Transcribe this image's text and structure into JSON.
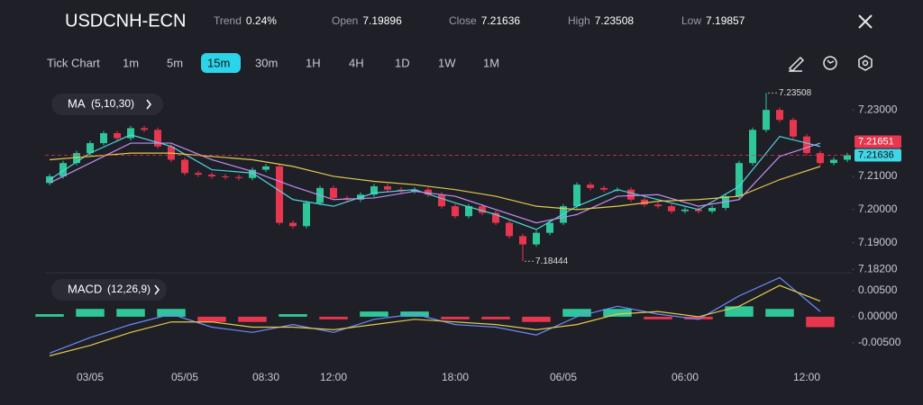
{
  "header": {
    "symbol": "USDCNH-ECN",
    "stats": [
      {
        "label": "Trend",
        "value": "0.24%"
      },
      {
        "label": "Open",
        "value": "7.19896"
      },
      {
        "label": "Close",
        "value": "7.21636"
      },
      {
        "label": "High",
        "value": "7.23508"
      },
      {
        "label": "Low",
        "value": "7.19857"
      }
    ]
  },
  "toolbar": {
    "items": [
      "Tick Chart",
      "1m",
      "5m",
      "15m",
      "30m",
      "1H",
      "4H",
      "1D",
      "1W",
      "1M"
    ],
    "selected": "15m"
  },
  "chart_data": {
    "type": "candlestick",
    "indicator": {
      "name": "MA",
      "params": "(5,10,30)"
    },
    "up_color": "#2fc79a",
    "down_color": "#e8364f",
    "candles": [
      [
        7.208,
        7.2107,
        7.2073,
        7.21
      ],
      [
        7.21,
        7.2147,
        7.2093,
        7.214
      ],
      [
        7.214,
        7.2177,
        7.2133,
        7.217
      ],
      [
        7.217,
        7.2207,
        7.2163,
        7.22
      ],
      [
        7.22,
        7.2237,
        7.2193,
        7.223
      ],
      [
        7.223,
        7.2237,
        7.2208,
        7.2215
      ],
      [
        7.2215,
        7.2252,
        7.2208,
        7.2245
      ],
      [
        7.2245,
        7.2252,
        7.2233,
        7.224
      ],
      [
        7.224,
        7.2247,
        7.2183,
        7.219
      ],
      [
        7.219,
        7.2197,
        7.2143,
        7.215
      ],
      [
        7.215,
        7.2157,
        7.2103,
        7.211
      ],
      [
        7.211,
        7.2117,
        7.2098,
        7.2105
      ],
      [
        7.2105,
        7.2112,
        7.2093,
        7.21
      ],
      [
        7.21,
        7.2107,
        7.2091,
        7.2098
      ],
      [
        7.2098,
        7.2105,
        7.2088,
        7.2095
      ],
      [
        7.2095,
        7.2127,
        7.2088,
        7.212
      ],
      [
        7.212,
        7.2137,
        7.2113,
        7.213
      ],
      [
        7.213,
        7.2137,
        7.1953,
        7.196
      ],
      [
        7.196,
        7.1967,
        7.1943,
        7.195
      ],
      [
        7.195,
        7.2027,
        7.1943,
        7.202
      ],
      [
        7.202,
        7.2072,
        7.2013,
        7.2065
      ],
      [
        7.2065,
        7.2072,
        7.2028,
        7.2035
      ],
      [
        7.2035,
        7.2042,
        7.2023,
        7.203
      ],
      [
        7.203,
        7.2052,
        7.2023,
        7.2045
      ],
      [
        7.2045,
        7.2077,
        7.2038,
        7.207
      ],
      [
        7.207,
        7.2077,
        7.2053,
        7.206
      ],
      [
        7.206,
        7.2067,
        7.2048,
        7.2055
      ],
      [
        7.2055,
        7.2067,
        7.2048,
        7.206
      ],
      [
        7.206,
        7.2067,
        7.2038,
        7.2045
      ],
      [
        7.2045,
        7.2052,
        7.2003,
        7.201
      ],
      [
        7.201,
        7.2017,
        7.1973,
        7.198
      ],
      [
        7.198,
        7.2017,
        7.1973,
        7.201
      ],
      [
        7.201,
        7.2017,
        7.1983,
        7.199
      ],
      [
        7.199,
        7.1997,
        7.1953,
        7.196
      ],
      [
        7.196,
        7.1967,
        7.1913,
        7.192
      ],
      [
        7.192,
        7.1927,
        7.18444,
        7.1895
      ],
      [
        7.1895,
        7.1937,
        7.1888,
        7.193
      ],
      [
        7.193,
        7.1967,
        7.1923,
        7.196
      ],
      [
        7.196,
        7.2017,
        7.1953,
        7.201
      ],
      [
        7.201,
        7.2082,
        7.2003,
        7.2075
      ],
      [
        7.2075,
        7.2082,
        7.2058,
        7.2065
      ],
      [
        7.2065,
        7.2072,
        7.2053,
        7.206
      ],
      [
        7.206,
        7.2067,
        7.2053,
        7.206
      ],
      [
        7.206,
        7.2067,
        7.2023,
        7.203
      ],
      [
        7.203,
        7.2037,
        7.2008,
        7.2015
      ],
      [
        7.2015,
        7.2022,
        7.2003,
        7.201
      ],
      [
        7.201,
        7.2017,
        7.1988,
        7.1995
      ],
      [
        7.1995,
        7.2007,
        7.1988,
        7.2
      ],
      [
        7.2,
        7.2007,
        7.1988,
        7.1995
      ],
      [
        7.1995,
        7.2012,
        7.1988,
        7.2005
      ],
      [
        7.2005,
        7.2047,
        7.1998,
        7.204
      ],
      [
        7.204,
        7.2147,
        7.2033,
        7.214
      ],
      [
        7.214,
        7.2247,
        7.2133,
        7.224
      ],
      [
        7.224,
        7.23508,
        7.2233,
        7.23
      ],
      [
        7.23,
        7.2307,
        7.2263,
        7.227
      ],
      [
        7.227,
        7.2277,
        7.2213,
        7.222
      ],
      [
        7.222,
        7.2227,
        7.2163,
        7.217
      ],
      [
        7.217,
        7.2177,
        7.2133,
        7.214
      ],
      [
        7.214,
        7.2157,
        7.2133,
        7.215
      ],
      [
        7.215,
        7.2171,
        7.2143,
        7.21636
      ]
    ],
    "x_labels": [
      null,
      null,
      null,
      "03/05",
      null,
      null,
      null,
      null,
      null,
      null,
      "05/05",
      null,
      null,
      null,
      null,
      null,
      "08:30",
      null,
      null,
      null,
      null,
      "12:00",
      null,
      null,
      null,
      null,
      null,
      null,
      null,
      null,
      "18:00",
      null,
      null,
      null,
      null,
      null,
      null,
      null,
      "06/05",
      null,
      null,
      null,
      null,
      null,
      null,
      null,
      null,
      "06:00",
      null,
      null,
      null,
      null,
      null,
      null,
      null,
      null,
      "12:00",
      null,
      null,
      null
    ],
    "high_label_index": 53,
    "low_label_index": 35,
    "ylim": [
      7.1818,
      7.236
    ],
    "yticks": [
      {
        "value": 7.23,
        "label": "7.23000"
      },
      {
        "value": 7.21,
        "label": "7.21000"
      },
      {
        "value": 7.2,
        "label": "7.20000"
      },
      {
        "value": 7.19,
        "label": "7.19000"
      },
      {
        "value": 7.182,
        "label": "7.18200"
      }
    ],
    "price_tags": [
      {
        "value": 7.21651,
        "color": "#e8364f"
      },
      {
        "value": 7.21636,
        "color": "#3fd6e6"
      }
    ],
    "ma_x": [
      0,
      3,
      6,
      9,
      12,
      15,
      18,
      21,
      24,
      27,
      30,
      33,
      36,
      39,
      42,
      45,
      48,
      51,
      54,
      57
    ],
    "ma_series": [
      {
        "color": "#4fd5e0",
        "values": [
          7.209,
          7.217,
          7.2225,
          7.219,
          7.212,
          7.211,
          7.203,
          7.201,
          7.205,
          7.206,
          7.202,
          7.1985,
          7.194,
          7.201,
          7.206,
          7.203,
          7.2,
          7.207,
          7.222,
          7.219
        ]
      },
      {
        "color": "#c38ef0",
        "values": [
          7.208,
          7.214,
          7.22,
          7.22,
          7.215,
          7.2115,
          7.207,
          7.203,
          7.2035,
          7.2055,
          7.204,
          7.2,
          7.196,
          7.1985,
          7.204,
          7.2045,
          7.201,
          7.203,
          7.216,
          7.22
        ]
      },
      {
        "color": "#e3c94d",
        "values": [
          7.215,
          7.216,
          7.217,
          7.217,
          7.216,
          7.215,
          7.213,
          7.21,
          7.2085,
          7.2075,
          7.206,
          7.204,
          7.201,
          7.2,
          7.201,
          7.2025,
          7.203,
          7.204,
          7.209,
          7.213
        ]
      }
    ],
    "macd": {
      "name": "MACD",
      "params": "(12,26,9)",
      "ylim": [
        -0.0083,
        0.0081
      ],
      "yticks": [
        {
          "value": 0.005,
          "label": "0.00500"
        },
        {
          "value": 0,
          "label": "0.00000"
        },
        {
          "value": -0.005,
          "label": "-0.00500"
        }
      ],
      "macd_color": "#6b8cff",
      "signal_color": "#e3c94d",
      "macd": [
        -0.007,
        -0.004,
        -0.0015,
        0.0005,
        -0.002,
        -0.003,
        -0.0015,
        -0.003,
        -0.0005,
        0.0005,
        -0.0015,
        -0.002,
        -0.0035,
        0.0,
        0.002,
        0.0005,
        -0.0005,
        0.004,
        0.0075,
        0.001
      ],
      "signal": [
        -0.0075,
        -0.0055,
        -0.003,
        -0.001,
        -0.001,
        -0.002,
        -0.002,
        -0.0025,
        -0.0015,
        -0.0005,
        -0.001,
        -0.0015,
        -0.0025,
        -0.0015,
        0.0005,
        0.001,
        0.0,
        0.002,
        0.006,
        0.003
      ],
      "histogram": [
        0.0005,
        0.0015,
        0.0015,
        0.0015,
        -0.001,
        -0.001,
        0.0005,
        -0.0005,
        0.001,
        0.001,
        -0.0005,
        -0.0005,
        -0.001,
        0.0015,
        0.0015,
        -0.0005,
        -0.0005,
        0.002,
        0.0015,
        -0.002
      ]
    }
  }
}
